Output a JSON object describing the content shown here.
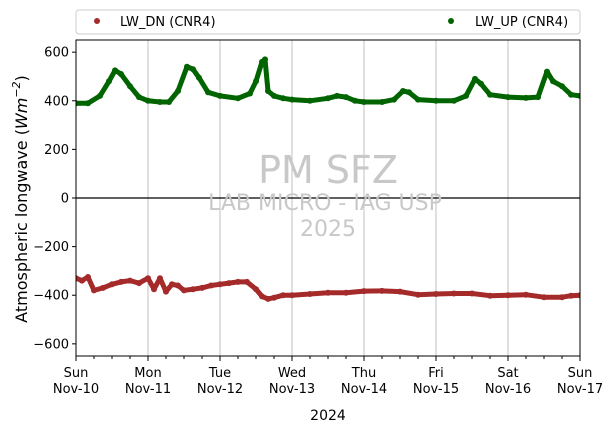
{
  "chart_data": {
    "type": "scatter",
    "ylabel_main": "Atmospheric longwave (",
    "ylabel_unit": "Wm",
    "ylabel_exp": "−2",
    "ylabel_close": ")",
    "xlabel": "2024",
    "ylim": [
      -650,
      650
    ],
    "yticks": [
      -600,
      -400,
      -200,
      0,
      200,
      400,
      600
    ],
    "xlim_days": [
      0,
      7
    ],
    "xticks": [
      {
        "day": "Sun",
        "date": "Nov-10"
      },
      {
        "day": "Mon",
        "date": "Nov-11"
      },
      {
        "day": "Tue",
        "date": "Nov-12"
      },
      {
        "day": "Wed",
        "date": "Nov-13"
      },
      {
        "day": "Thu",
        "date": "Nov-14"
      },
      {
        "day": "Fri",
        "date": "Nov-15"
      },
      {
        "day": "Sat",
        "date": "Nov-16"
      },
      {
        "day": "Sun",
        "date": "Nov-17"
      }
    ],
    "grid": "vertical",
    "hline_y": 0,
    "legend_position": "top",
    "watermark": [
      "PM SFZ",
      "LAB MICRO - IAG USP",
      "2025"
    ],
    "series": [
      {
        "name": "LW_DN (CNR4)",
        "color": "#a52a2a",
        "points": [
          [
            "2024-11-10 00:00",
            -330
          ],
          [
            "2024-11-10 02:00",
            -340
          ],
          [
            "2024-11-10 04:00",
            -325
          ],
          [
            "2024-11-10 06:00",
            -380
          ],
          [
            "2024-11-10 09:00",
            -370
          ],
          [
            "2024-11-10 12:00",
            -355
          ],
          [
            "2024-11-10 15:00",
            -345
          ],
          [
            "2024-11-10 18:00",
            -340
          ],
          [
            "2024-11-10 21:00",
            -350
          ],
          [
            "2024-11-11 00:00",
            -330
          ],
          [
            "2024-11-11 02:00",
            -375
          ],
          [
            "2024-11-11 04:00",
            -330
          ],
          [
            "2024-11-11 06:00",
            -385
          ],
          [
            "2024-11-11 08:00",
            -355
          ],
          [
            "2024-11-11 10:00",
            -360
          ],
          [
            "2024-11-11 12:00",
            -380
          ],
          [
            "2024-11-11 15:00",
            -375
          ],
          [
            "2024-11-11 18:00",
            -370
          ],
          [
            "2024-11-11 21:00",
            -360
          ],
          [
            "2024-11-12 00:00",
            -355
          ],
          [
            "2024-11-12 03:00",
            -350
          ],
          [
            "2024-11-12 06:00",
            -345
          ],
          [
            "2024-11-12 09:00",
            -345
          ],
          [
            "2024-11-12 12:00",
            -375
          ],
          [
            "2024-11-12 14:00",
            -405
          ],
          [
            "2024-11-12 16:00",
            -415
          ],
          [
            "2024-11-12 18:00",
            -410
          ],
          [
            "2024-11-12 21:00",
            -400
          ],
          [
            "2024-11-13 00:00",
            -400
          ],
          [
            "2024-11-13 06:00",
            -395
          ],
          [
            "2024-11-13 12:00",
            -390
          ],
          [
            "2024-11-13 18:00",
            -390
          ],
          [
            "2024-11-14 00:00",
            -383
          ],
          [
            "2024-11-14 06:00",
            -382
          ],
          [
            "2024-11-14 12:00",
            -385
          ],
          [
            "2024-11-14 18:00",
            -398
          ],
          [
            "2024-11-15 00:00",
            -395
          ],
          [
            "2024-11-15 06:00",
            -393
          ],
          [
            "2024-11-15 12:00",
            -393
          ],
          [
            "2024-11-15 18:00",
            -402
          ],
          [
            "2024-11-16 00:00",
            -400
          ],
          [
            "2024-11-16 06:00",
            -398
          ],
          [
            "2024-11-16 12:00",
            -408
          ],
          [
            "2024-11-16 18:00",
            -408
          ],
          [
            "2024-11-16 21:00",
            -402
          ],
          [
            "2024-11-17 00:00",
            -400
          ]
        ]
      },
      {
        "name": "LW_UP (CNR4)",
        "color": "#006400",
        "points": [
          [
            "2024-11-10 00:00",
            390
          ],
          [
            "2024-11-10 04:00",
            390
          ],
          [
            "2024-11-10 08:00",
            420
          ],
          [
            "2024-11-10 11:00",
            480
          ],
          [
            "2024-11-10 13:00",
            525
          ],
          [
            "2024-11-10 15:00",
            510
          ],
          [
            "2024-11-10 18:00",
            460
          ],
          [
            "2024-11-10 21:00",
            415
          ],
          [
            "2024-11-11 00:00",
            400
          ],
          [
            "2024-11-11 04:00",
            395
          ],
          [
            "2024-11-11 07:00",
            395
          ],
          [
            "2024-11-11 10:00",
            440
          ],
          [
            "2024-11-11 13:00",
            540
          ],
          [
            "2024-11-11 15:00",
            530
          ],
          [
            "2024-11-11 17:00",
            495
          ],
          [
            "2024-11-11 20:00",
            435
          ],
          [
            "2024-11-12 00:00",
            420
          ],
          [
            "2024-11-12 06:00",
            410
          ],
          [
            "2024-11-12 10:00",
            430
          ],
          [
            "2024-11-12 12:00",
            480
          ],
          [
            "2024-11-12 14:00",
            560
          ],
          [
            "2024-11-12 15:00",
            570
          ],
          [
            "2024-11-12 16:00",
            440
          ],
          [
            "2024-11-12 18:00",
            420
          ],
          [
            "2024-11-12 21:00",
            410
          ],
          [
            "2024-11-13 00:00",
            405
          ],
          [
            "2024-11-13 06:00",
            400
          ],
          [
            "2024-11-13 12:00",
            410
          ],
          [
            "2024-11-13 15:00",
            420
          ],
          [
            "2024-11-13 18:00",
            415
          ],
          [
            "2024-11-13 21:00",
            400
          ],
          [
            "2024-11-14 00:00",
            395
          ],
          [
            "2024-11-14 06:00",
            395
          ],
          [
            "2024-11-14 10:00",
            405
          ],
          [
            "2024-11-14 13:00",
            440
          ],
          [
            "2024-11-14 15:00",
            435
          ],
          [
            "2024-11-14 18:00",
            405
          ],
          [
            "2024-11-15 00:00",
            400
          ],
          [
            "2024-11-15 06:00",
            400
          ],
          [
            "2024-11-15 10:00",
            420
          ],
          [
            "2024-11-15 13:00",
            490
          ],
          [
            "2024-11-15 15:00",
            470
          ],
          [
            "2024-11-15 18:00",
            425
          ],
          [
            "2024-11-16 00:00",
            415
          ],
          [
            "2024-11-16 06:00",
            412
          ],
          [
            "2024-11-16 10:00",
            415
          ],
          [
            "2024-11-16 13:00",
            520
          ],
          [
            "2024-11-16 15:00",
            480
          ],
          [
            "2024-11-16 18:00",
            460
          ],
          [
            "2024-11-16 21:00",
            425
          ],
          [
            "2024-11-17 00:00",
            420
          ]
        ]
      }
    ]
  }
}
